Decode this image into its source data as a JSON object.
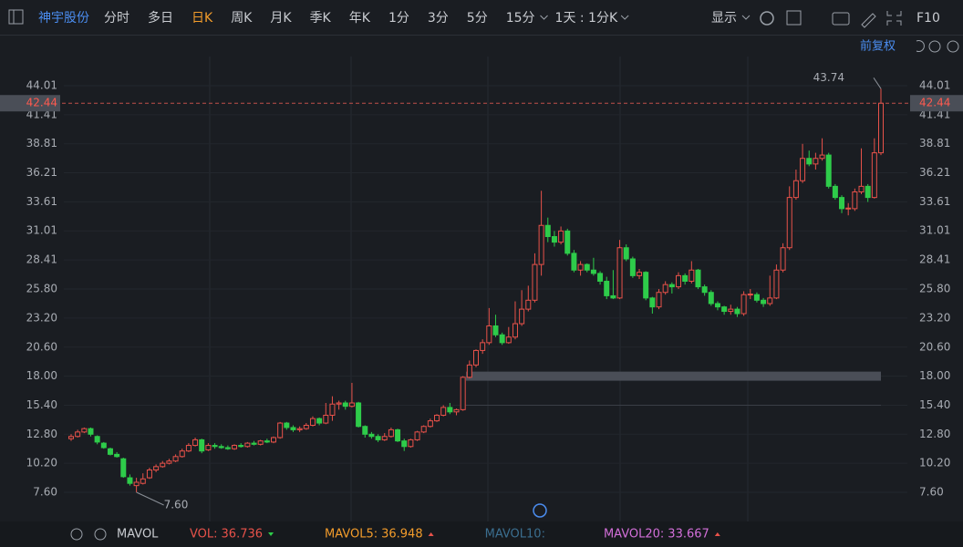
{
  "toolbar": {
    "stock": "神宇股份",
    "items": [
      "分时",
      "多日",
      "日K",
      "周K",
      "月K",
      "季K",
      "年K",
      "1分",
      "3分",
      "5分",
      "15分",
      "1天 : 1分K"
    ],
    "active": 2,
    "display": "显示",
    "f10": "F10"
  },
  "subbar": {
    "adjust": "前复权"
  },
  "indicators": {
    "name": "MAVOL",
    "items": [
      {
        "label": "VOL:",
        "value": "36.736",
        "color": "#e8524a"
      },
      {
        "label": "MAVOL5:",
        "value": "36.948",
        "color": "#f39c2b"
      },
      {
        "label": "MAVOL10:",
        "value": "",
        "color": "#3b6e8f"
      },
      {
        "label": "MAVOL20:",
        "value": "33.667",
        "color": "#d36fd9"
      }
    ]
  },
  "chart_data": {
    "type": "candlestick",
    "up_color": "#e8524a",
    "down_color": "#2ecc4a",
    "ylim": [
      7.6,
      44.01
    ],
    "yticks": [
      44.01,
      41.41,
      38.81,
      36.21,
      33.61,
      31.01,
      28.41,
      {
        "value": 25.8,
        "label": "25.80"
      },
      {
        "value": 23.2,
        "label": "23.20"
      },
      {
        "value": 20.6,
        "label": "20.60"
      },
      {
        "value": 18.0,
        "label": "18.00"
      },
      {
        "value": 15.4,
        "label": "15.40"
      },
      {
        "value": 12.8,
        "label": "12.80"
      },
      {
        "value": 10.2,
        "label": "10.20"
      },
      {
        "value": 7.6,
        "label": "7.60"
      }
    ],
    "last": {
      "value": 42.44
    },
    "annotations": [
      {
        "value": 43.74
      },
      {
        "value": 7.6,
        "label": "7.60"
      }
    ],
    "candles": [
      [
        12.4,
        12.8,
        12.2,
        12.6
      ],
      [
        12.6,
        13.2,
        12.5,
        13.0
      ],
      [
        13.0,
        13.4,
        12.9,
        13.3
      ],
      [
        13.3,
        13.4,
        12.6,
        12.8
      ],
      [
        12.6,
        12.7,
        11.9,
        12.1
      ],
      [
        12.0,
        12.1,
        11.5,
        11.6
      ],
      [
        11.5,
        11.6,
        10.9,
        11.0
      ],
      [
        11.0,
        11.2,
        10.7,
        10.8
      ],
      [
        10.6,
        10.7,
        8.9,
        9.0
      ],
      [
        8.9,
        9.2,
        8.2,
        8.4
      ],
      [
        8.2,
        8.9,
        7.6,
        8.5
      ],
      [
        8.4,
        9.3,
        8.3,
        8.8
      ],
      [
        8.9,
        9.8,
        8.8,
        9.6
      ],
      [
        9.6,
        10.1,
        9.4,
        9.9
      ],
      [
        9.9,
        10.4,
        9.8,
        10.2
      ],
      [
        10.2,
        10.6,
        10.1,
        10.4
      ],
      [
        10.4,
        11.0,
        10.3,
        10.8
      ],
      [
        10.8,
        11.5,
        10.7,
        11.3
      ],
      [
        11.3,
        12.0,
        11.2,
        11.8
      ],
      [
        11.8,
        12.5,
        11.7,
        12.3
      ],
      [
        12.3,
        12.4,
        11.1,
        11.3
      ],
      [
        11.4,
        12.0,
        11.3,
        11.8
      ],
      [
        11.8,
        12.0,
        11.5,
        11.7
      ],
      [
        11.7,
        11.9,
        11.5,
        11.6
      ],
      [
        11.6,
        11.8,
        11.4,
        11.5
      ],
      [
        11.5,
        11.9,
        11.4,
        11.8
      ],
      [
        11.8,
        12.0,
        11.6,
        11.7
      ],
      [
        11.7,
        12.1,
        11.6,
        12.0
      ],
      [
        12.0,
        12.2,
        11.8,
        11.9
      ],
      [
        11.9,
        12.3,
        11.8,
        12.2
      ],
      [
        12.2,
        12.4,
        12.0,
        12.1
      ],
      [
        12.1,
        12.6,
        12.0,
        12.5
      ],
      [
        12.5,
        13.9,
        12.4,
        13.8
      ],
      [
        13.8,
        13.9,
        13.2,
        13.4
      ],
      [
        13.4,
        13.6,
        13.0,
        13.2
      ],
      [
        13.2,
        13.5,
        13.0,
        13.3
      ],
      [
        13.3,
        13.8,
        13.2,
        13.6
      ],
      [
        13.6,
        14.4,
        13.5,
        14.2
      ],
      [
        14.2,
        14.3,
        13.6,
        13.8
      ],
      [
        13.8,
        15.6,
        13.7,
        14.5
      ],
      [
        14.5,
        16.2,
        14.0,
        15.5
      ],
      [
        15.5,
        15.8,
        15.0,
        15.6
      ],
      [
        15.6,
        15.8,
        15.0,
        15.3
      ],
      [
        15.3,
        17.4,
        15.2,
        15.6
      ],
      [
        15.6,
        15.7,
        13.4,
        13.5
      ],
      [
        13.5,
        13.6,
        12.5,
        12.8
      ],
      [
        12.8,
        13.0,
        12.4,
        12.6
      ],
      [
        12.6,
        12.8,
        12.1,
        12.3
      ],
      [
        12.3,
        12.9,
        12.2,
        12.6
      ],
      [
        12.6,
        13.4,
        12.5,
        13.2
      ],
      [
        13.2,
        13.3,
        12.1,
        12.2
      ],
      [
        12.2,
        12.4,
        11.3,
        11.7
      ],
      [
        11.7,
        12.4,
        11.6,
        12.3
      ],
      [
        12.3,
        13.1,
        12.2,
        13.0
      ],
      [
        13.0,
        13.6,
        12.9,
        13.5
      ],
      [
        13.5,
        14.2,
        13.4,
        14.0
      ],
      [
        14.0,
        14.6,
        13.9,
        14.5
      ],
      [
        14.5,
        15.4,
        14.4,
        15.2
      ],
      [
        15.2,
        15.6,
        14.6,
        14.8
      ],
      [
        14.8,
        15.1,
        14.5,
        15.0
      ],
      [
        15.0,
        18.0,
        14.9,
        17.9
      ],
      [
        17.9,
        19.4,
        17.8,
        19.0
      ],
      [
        19.0,
        20.4,
        18.8,
        20.3
      ],
      [
        20.3,
        21.3,
        20.0,
        21.0
      ],
      [
        21.0,
        24.1,
        20.8,
        22.5
      ],
      [
        22.5,
        23.5,
        21.5,
        21.7
      ],
      [
        21.7,
        21.9,
        20.8,
        21.0
      ],
      [
        21.0,
        22.4,
        20.9,
        21.5
      ],
      [
        21.5,
        24.7,
        21.3,
        22.7
      ],
      [
        22.7,
        25.7,
        22.5,
        24.0
      ],
      [
        24.0,
        26.1,
        23.8,
        24.8
      ],
      [
        24.8,
        29.0,
        24.6,
        28.0
      ],
      [
        28.0,
        34.6,
        27.0,
        31.5
      ],
      [
        31.5,
        32.2,
        30.0,
        30.5
      ],
      [
        30.5,
        31.0,
        29.6,
        30.0
      ],
      [
        30.0,
        31.4,
        29.8,
        31.0
      ],
      [
        31.0,
        31.2,
        28.8,
        29.0
      ],
      [
        29.0,
        29.3,
        27.3,
        27.5
      ],
      [
        27.5,
        28.3,
        27.0,
        28.0
      ],
      [
        28.0,
        28.1,
        27.3,
        27.5
      ],
      [
        27.5,
        28.6,
        27.0,
        27.2
      ],
      [
        27.2,
        27.4,
        26.2,
        26.5
      ],
      [
        26.5,
        26.9,
        24.9,
        25.2
      ],
      [
        25.2,
        27.5,
        24.9,
        25.0
      ],
      [
        25.0,
        30.2,
        24.9,
        29.5
      ],
      [
        29.5,
        29.8,
        28.3,
        28.5
      ],
      [
        28.5,
        28.7,
        26.8,
        27.0
      ],
      [
        27.0,
        27.6,
        26.7,
        27.3
      ],
      [
        27.3,
        27.4,
        24.8,
        25.0
      ],
      [
        25.0,
        25.1,
        23.6,
        24.2
      ],
      [
        24.2,
        25.8,
        24.0,
        25.5
      ],
      [
        25.5,
        26.5,
        25.3,
        26.2
      ],
      [
        26.2,
        26.4,
        25.4,
        26.0
      ],
      [
        26.0,
        27.3,
        25.8,
        27.0
      ],
      [
        27.0,
        27.2,
        26.2,
        26.5
      ],
      [
        26.5,
        28.3,
        26.3,
        27.5
      ],
      [
        27.5,
        27.6,
        25.8,
        26.0
      ],
      [
        26.0,
        26.2,
        25.2,
        25.5
      ],
      [
        25.5,
        25.7,
        24.3,
        24.5
      ],
      [
        24.5,
        24.7,
        23.9,
        24.2
      ],
      [
        24.2,
        24.3,
        23.5,
        23.8
      ],
      [
        23.8,
        24.4,
        23.5,
        24.0
      ],
      [
        24.0,
        24.2,
        23.3,
        23.6
      ],
      [
        23.6,
        25.6,
        23.4,
        25.3
      ],
      [
        25.3,
        25.8,
        24.9,
        25.35
      ],
      [
        25.3,
        25.5,
        24.6,
        24.8
      ],
      [
        24.8,
        25.0,
        24.2,
        24.5
      ],
      [
        24.5,
        27.0,
        24.3,
        25.0
      ],
      [
        25.0,
        28.0,
        24.9,
        27.5
      ],
      [
        27.5,
        29.9,
        27.3,
        29.5
      ],
      [
        29.5,
        35.0,
        29.3,
        34.0
      ],
      [
        34.0,
        36.5,
        33.8,
        35.5
      ],
      [
        35.5,
        38.8,
        35.3,
        37.5
      ],
      [
        37.5,
        38.2,
        36.8,
        37.0
      ],
      [
        37.0,
        38.0,
        36.5,
        37.5
      ],
      [
        37.5,
        39.3,
        37.3,
        37.8
      ],
      [
        37.8,
        38.0,
        34.8,
        35.0
      ],
      [
        35.0,
        35.2,
        33.8,
        34.0
      ],
      [
        34.0,
        34.2,
        32.6,
        33.0
      ],
      [
        33.0,
        33.5,
        32.4,
        33.05
      ],
      [
        33.0,
        34.8,
        32.8,
        34.5
      ],
      [
        34.5,
        38.4,
        34.3,
        35.0
      ],
      [
        35.0,
        35.2,
        33.6,
        34.0
      ],
      [
        34.0,
        39.3,
        33.9,
        38.0
      ],
      [
        38.0,
        43.74,
        37.8,
        42.44
      ]
    ],
    "zones": [
      {
        "value": 18.0,
        "color": "#4a4e57"
      },
      {
        "value": 15.4,
        "color": "#3a3e46"
      }
    ]
  }
}
